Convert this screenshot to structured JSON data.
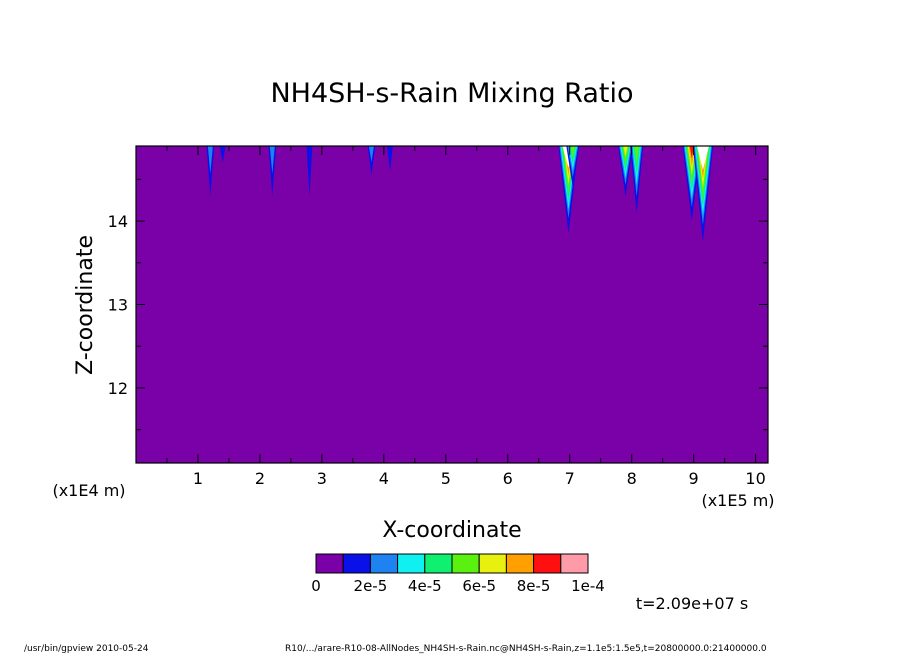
{
  "chart_data": {
    "type": "heatmap",
    "title": "NH4SH-s-Rain Mixing Ratio",
    "xlabel": "X-coordinate",
    "ylabel": "Z-coordinate",
    "x_unit": "(x1E5 m)",
    "y_unit": "(x1E4 m)",
    "xlim": [
      0.0,
      10.2
    ],
    "ylim": [
      11.1,
      14.9
    ],
    "x_ticks": [
      "1",
      "2",
      "3",
      "4",
      "5",
      "6",
      "7",
      "8",
      "9",
      "10"
    ],
    "y_ticks": [
      "12",
      "13",
      "14"
    ],
    "background_value": 0,
    "colorbar": {
      "levels": [
        0,
        1e-05,
        2e-05,
        3e-05,
        4e-05,
        5e-05,
        6e-05,
        7e-05,
        8e-05,
        9e-05,
        0.0001
      ],
      "colors": [
        "#7a00a8",
        "#0a10e8",
        "#1e82f0",
        "#10f0f0",
        "#10f070",
        "#5af010",
        "#e8f010",
        "#ffa000",
        "#ff1010",
        "#ff9aa8"
      ],
      "tick_labels": [
        "0",
        "2e-5",
        "4e-5",
        "6e-5",
        "8e-5",
        "1e-4"
      ]
    },
    "features": [
      {
        "x": 1.2,
        "z_bottom": 14.3,
        "peak": 2e-05
      },
      {
        "x": 1.4,
        "z_bottom": 14.7,
        "peak": 1e-05
      },
      {
        "x": 2.2,
        "z_bottom": 14.3,
        "peak": 2e-05
      },
      {
        "x": 2.8,
        "z_bottom": 14.3,
        "peak": 1e-05
      },
      {
        "x": 3.8,
        "z_bottom": 14.55,
        "peak": 2e-05
      },
      {
        "x": 4.1,
        "z_bottom": 14.6,
        "peak": 1e-05
      },
      {
        "x": 6.9,
        "z_bottom": 14.9,
        "peak": 1e-05
      },
      {
        "x": 6.98,
        "z_bottom": 13.85,
        "peak": 0.0001
      },
      {
        "x": 7.05,
        "z_bottom": 14.4,
        "peak": 5e-05
      },
      {
        "x": 7.9,
        "z_bottom": 14.3,
        "peak": 6e-05
      },
      {
        "x": 8.08,
        "z_bottom": 14.1,
        "peak": 5e-05
      },
      {
        "x": 8.97,
        "z_bottom": 14.0,
        "peak": 8e-05
      },
      {
        "x": 9.15,
        "z_bottom": 13.75,
        "peak": 0.0001
      }
    ],
    "time_label": "t=2.09e+07 s"
  },
  "footer": {
    "program": "/usr/bin/gpview   2010-05-24",
    "source": "R10/.../arare-R10-08-AllNodes_NH4SH-s-Rain.nc@NH4SH-s-Rain,z=1.1e5:1.5e5,t=20800000.0:21400000.0"
  }
}
